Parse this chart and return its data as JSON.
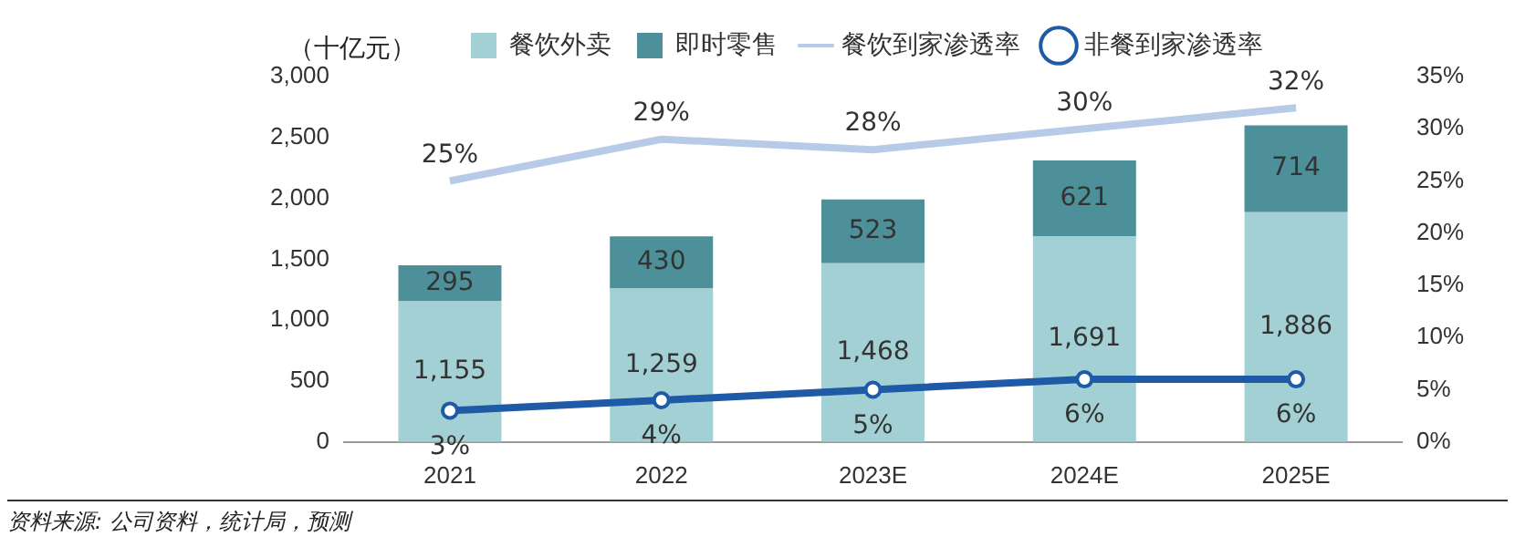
{
  "chart_data": {
    "type": "bar",
    "stacked": true,
    "ylabel": "（十亿元）",
    "categories": [
      "2021",
      "2022",
      "2023E",
      "2024E",
      "2025E"
    ],
    "series": [
      {
        "name": "餐饮外卖",
        "color": "#a3d0d4",
        "values": [
          1155,
          1259,
          1468,
          1691,
          1886
        ],
        "value_labels": [
          "1,155",
          "1,259",
          "1,468",
          "1,691",
          "1,886"
        ]
      },
      {
        "name": "即时零售",
        "color": "#4d9099",
        "values": [
          295,
          430,
          523,
          621,
          714
        ]
      },
      {
        "name": "餐饮到家渗透率",
        "type": "line",
        "axis": "y2",
        "color": "#b7cbe9",
        "marker": "none",
        "values": [
          25,
          29,
          28,
          30,
          32
        ],
        "value_labels": [
          "25%",
          "29%",
          "28%",
          "30%",
          "32%"
        ]
      },
      {
        "name": "非餐到家渗透率",
        "type": "line",
        "axis": "y2",
        "color": "#1f5aa6",
        "marker": "circle",
        "values": [
          3,
          4,
          5,
          6,
          6
        ],
        "value_labels": [
          "3%",
          "4%",
          "5%",
          "6%",
          "6%"
        ]
      }
    ],
    "ylim": [
      0,
      3000
    ],
    "yticks": [
      0,
      500,
      {
        "value": 1000,
        "label": "1,000"
      },
      {
        "value": 1500,
        "label": "1,500"
      },
      {
        "value": 2000,
        "label": "2,000"
      },
      {
        "value": 2500,
        "label": "2,500"
      },
      {
        "value": 3000,
        "label": "3,000"
      }
    ],
    "y2lim": [
      0,
      35
    ],
    "y2ticks": [
      {
        "value": 0,
        "label": "0%"
      },
      {
        "value": 5,
        "label": "5%"
      },
      {
        "value": 10,
        "label": "10%"
      },
      {
        "value": 15,
        "label": "15%"
      },
      {
        "value": 20,
        "label": "20%"
      },
      {
        "value": 25,
        "label": "25%"
      },
      {
        "value": 30,
        "label": "30%"
      },
      {
        "value": 35,
        "label": "35%"
      }
    ],
    "grid": false,
    "legend": "top",
    "data_labels": true,
    "annotations": [
      "资料来源: 公司资料，统计局，预测"
    ]
  }
}
